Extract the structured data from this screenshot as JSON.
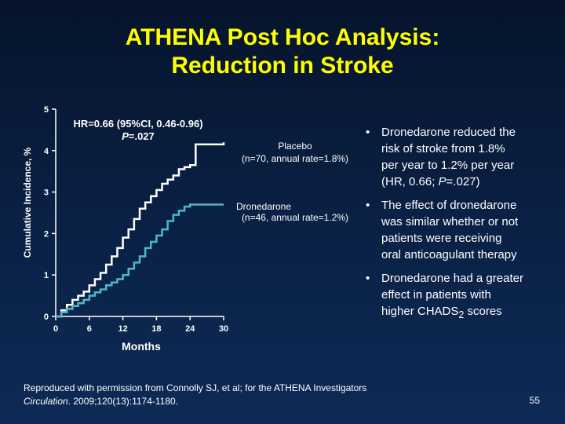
{
  "slide": {
    "title_line1": "ATHENA Post Hoc Analysis:",
    "title_line2": "Reduction in Stroke",
    "page_number": "55",
    "colors": {
      "title": "#ffff00",
      "placebo_line": "#ffffff",
      "dronedarone_line": "#4fb7c9",
      "background": "#0a2146"
    }
  },
  "annotations": {
    "hr_line1": "HR=0.66 (95%CI, 0.46-0.96)",
    "hr_p_letter": "P",
    "hr_p_rest": "=.027",
    "placebo_line1": "Placebo",
    "placebo_line2": "(n=70, annual rate=1.8%)",
    "dron_line1": "Dronedarone",
    "dron_line2": "(n=46, annual rate=1.2%)"
  },
  "bullets": [
    {
      "lines": [
        "Dronedarone reduced the",
        "risk of stroke from 1.8%",
        "per year to 1.2% per year"
      ],
      "hr_pre": "(HR, 0.66; ",
      "hr_p": "P",
      "hr_post": "=.027)"
    },
    {
      "lines": [
        "The effect of dronedarone",
        "was similar whether or not",
        "patients were receiving",
        "oral anticoagulant therapy"
      ]
    },
    {
      "lines": [
        "Dronedarone had a greater",
        "effect in patients with"
      ],
      "chads_pre": "higher CHADS",
      "chads_sub": "2",
      "chads_post": " scores"
    }
  ],
  "footer": {
    "line1": "Reproduced with permission from Connolly SJ, et al; for the ATHENA Investigators",
    "journal": "Circulation",
    "citation": ". 2009;120(13):1174-1180."
  },
  "chart_data": {
    "type": "line",
    "xlabel": "Months",
    "ylabel": "Cumulative Incidence, %",
    "xlim": [
      0,
      30
    ],
    "ylim": [
      0,
      5
    ],
    "xticks": [
      0,
      6,
      12,
      18,
      24,
      30
    ],
    "yticks": [
      0,
      1,
      2,
      3,
      4,
      5
    ],
    "series": [
      {
        "name": "Placebo",
        "x": [
          0,
          1,
          2,
          3,
          4,
          5,
          6,
          7,
          8,
          9,
          10,
          11,
          12,
          13,
          14,
          15,
          16,
          17,
          18,
          19,
          20,
          21,
          22,
          23,
          24,
          25,
          26,
          27,
          28,
          29,
          30
        ],
        "y": [
          0,
          0.15,
          0.28,
          0.4,
          0.5,
          0.6,
          0.75,
          0.9,
          1.05,
          1.25,
          1.45,
          1.65,
          1.9,
          2.1,
          2.35,
          2.6,
          2.75,
          2.9,
          3.05,
          3.2,
          3.3,
          3.4,
          3.55,
          3.6,
          3.65,
          4.15,
          4.15,
          4.15,
          4.15,
          4.15,
          4.2
        ]
      },
      {
        "name": "Dronedarone",
        "x": [
          0,
          1,
          2,
          3,
          4,
          5,
          6,
          7,
          8,
          9,
          10,
          11,
          12,
          13,
          14,
          15,
          16,
          17,
          18,
          19,
          20,
          21,
          22,
          23,
          24,
          25,
          26,
          27,
          28,
          29,
          30
        ],
        "y": [
          0,
          0.1,
          0.18,
          0.25,
          0.32,
          0.4,
          0.5,
          0.58,
          0.65,
          0.75,
          0.82,
          0.9,
          1.0,
          1.15,
          1.3,
          1.45,
          1.65,
          1.8,
          1.95,
          2.1,
          2.3,
          2.45,
          2.55,
          2.65,
          2.7,
          2.7,
          2.7,
          2.7,
          2.7,
          2.7,
          2.7
        ]
      }
    ]
  }
}
